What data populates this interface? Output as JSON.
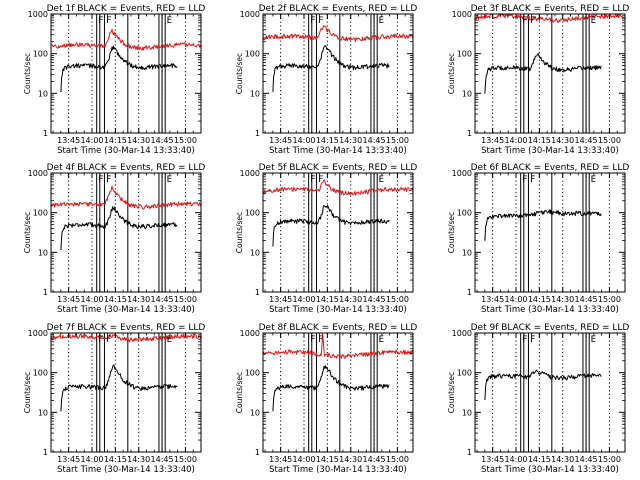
{
  "figure": {
    "background": "#ffffff",
    "axis_color": "#000000",
    "events_color": "#000000",
    "lld_color": "#dd1a1a"
  },
  "chart_data": [
    {
      "type": "line",
      "title": "Det 1f BLACK = Events, RED = LLD",
      "xlabel": "Start Time (30-Mar-14 13:33:40)",
      "ylabel": "Counts/sec",
      "x_ticklabels": [
        "13:45",
        "14:00",
        "14:15",
        "14:30",
        "14:45",
        "15:00"
      ],
      "y_ticklabels": [
        "1",
        "10",
        "100",
        "1000"
      ],
      "xlim": [
        "13:33:40",
        "15:10"
      ],
      "ylim": [
        1,
        1000
      ],
      "yscale": "log",
      "dotted_vlines": [
        "13:45",
        "14:00",
        "14:15",
        "14:30",
        "14:45",
        "15:00"
      ],
      "solid_vlines": [
        "14:03",
        "14:05",
        "14:08",
        "14:23",
        "14:43",
        "14:45",
        "14:47"
      ],
      "markers": [
        {
          "text": "F",
          "time": "14:03"
        },
        {
          "text": "F",
          "time": "14:08"
        },
        {
          "text": "E",
          "time": "14:47"
        }
      ],
      "series": [
        {
          "name": "Events",
          "color": "#000000",
          "start": "13:40",
          "end": "14:55",
          "base": 45,
          "peak": 150,
          "peak_time": "14:14",
          "peak_width": 2,
          "spike": null
        },
        {
          "name": "LLD",
          "color": "#dd1a1a",
          "start": "13:33:40",
          "end": "15:10",
          "base": 150,
          "peak": 380,
          "peak_time": "14:13",
          "peak_width": 2,
          "spike": null
        }
      ]
    },
    {
      "type": "line",
      "title": "Det 2f BLACK = Events, RED = LLD",
      "xlabel": "Start Time (30-Mar-14 13:33:40)",
      "ylabel": "Counts/sec",
      "x_ticklabels": [
        "13:45",
        "14:00",
        "14:15",
        "14:30",
        "14:45",
        "15:00"
      ],
      "y_ticklabels": [
        "1",
        "10",
        "100",
        "1000"
      ],
      "xlim": [
        "13:33:40",
        "15:10"
      ],
      "ylim": [
        1,
        1000
      ],
      "yscale": "log",
      "dotted_vlines": [
        "13:45",
        "14:00",
        "14:15",
        "14:30",
        "14:45",
        "15:00"
      ],
      "solid_vlines": [
        "14:03",
        "14:05",
        "14:08",
        "14:23",
        "14:43",
        "14:45",
        "14:47"
      ],
      "markers": [
        {
          "text": "F",
          "time": "14:03"
        },
        {
          "text": "F",
          "time": "14:08"
        },
        {
          "text": "E",
          "time": "14:47"
        }
      ],
      "series": [
        {
          "name": "Events",
          "color": "#000000",
          "start": "13:40",
          "end": "14:55",
          "base": 45,
          "peak": 160,
          "peak_time": "14:14",
          "peak_width": 2,
          "spike": null
        },
        {
          "name": "LLD",
          "color": "#dd1a1a",
          "start": "13:33:40",
          "end": "15:10",
          "base": 250,
          "peak": 500,
          "peak_time": "14:13",
          "peak_width": 2,
          "spike": null
        }
      ]
    },
    {
      "type": "line",
      "title": "Det 3f BLACK = Events, RED = LLD",
      "xlabel": "Start Time (30-Mar-14 13:33:40)",
      "ylabel": "Counts/sec",
      "x_ticklabels": [
        "13:45",
        "14:00",
        "14:15",
        "14:30",
        "14:45",
        "15:00"
      ],
      "y_ticklabels": [
        "1",
        "10",
        "100",
        "1000"
      ],
      "xlim": [
        "13:33:40",
        "15:10"
      ],
      "ylim": [
        1,
        1000
      ],
      "yscale": "log",
      "dotted_vlines": [
        "13:45",
        "14:00",
        "14:15",
        "14:30",
        "14:45",
        "15:00"
      ],
      "solid_vlines": [
        "14:03",
        "14:05",
        "14:08",
        "14:23",
        "14:43",
        "14:45",
        "14:47"
      ],
      "markers": [
        {
          "text": "F",
          "time": "14:03"
        },
        {
          "text": "F",
          "time": "14:08"
        },
        {
          "text": "E",
          "time": "14:47"
        }
      ],
      "series": [
        {
          "name": "Events",
          "color": "#000000",
          "start": "13:40",
          "end": "14:55",
          "base": 40,
          "peak": 100,
          "peak_time": "14:14",
          "peak_width": 2,
          "spike": null
        },
        {
          "name": "LLD",
          "color": "#dd1a1a",
          "start": "13:33:40",
          "end": "15:10",
          "base": 800,
          "peak": 800,
          "peak_time": "14:13",
          "peak_width": 2,
          "spike": null
        }
      ]
    },
    {
      "type": "line",
      "title": "Det 4f BLACK = Events, RED = LLD",
      "xlabel": "Start Time (30-Mar-14 13:33:40)",
      "ylabel": "Counts/sec",
      "x_ticklabels": [
        "13:45",
        "14:00",
        "14:15",
        "14:30",
        "14:45",
        "15:00"
      ],
      "y_ticklabels": [
        "1",
        "10",
        "100",
        "1000"
      ],
      "xlim": [
        "13:33:40",
        "15:10"
      ],
      "ylim": [
        1,
        1000
      ],
      "yscale": "log",
      "dotted_vlines": [
        "13:45",
        "14:00",
        "14:15",
        "14:30",
        "14:45",
        "15:00"
      ],
      "solid_vlines": [
        "14:03",
        "14:05",
        "14:08",
        "14:23",
        "14:43",
        "14:45",
        "14:47"
      ],
      "markers": [
        {
          "text": "F",
          "time": "14:03"
        },
        {
          "text": "F",
          "time": "14:08"
        },
        {
          "text": "E",
          "time": "14:47"
        }
      ],
      "series": [
        {
          "name": "Events",
          "color": "#000000",
          "start": "13:40",
          "end": "14:55",
          "base": 45,
          "peak": 140,
          "peak_time": "14:14",
          "peak_width": 2,
          "spike": null
        },
        {
          "name": "LLD",
          "color": "#dd1a1a",
          "start": "13:33:40",
          "end": "15:10",
          "base": 150,
          "peak": 420,
          "peak_time": "14:13",
          "peak_width": 2,
          "spike": null
        }
      ]
    },
    {
      "type": "line",
      "title": "Det 5f BLACK = Events, RED = LLD",
      "xlabel": "Start Time (30-Mar-14 13:33:40)",
      "ylabel": "Counts/sec",
      "x_ticklabels": [
        "13:45",
        "14:00",
        "14:15",
        "14:30",
        "14:45",
        "15:00"
      ],
      "y_ticklabels": [
        "1",
        "10",
        "100",
        "1000"
      ],
      "xlim": [
        "13:33:40",
        "15:10"
      ],
      "ylim": [
        1,
        1000
      ],
      "yscale": "log",
      "dotted_vlines": [
        "13:45",
        "14:00",
        "14:15",
        "14:30",
        "14:45",
        "15:00"
      ],
      "solid_vlines": [
        "14:03",
        "14:05",
        "14:08",
        "14:23",
        "14:43",
        "14:45",
        "14:47"
      ],
      "markers": [
        {
          "text": "F",
          "time": "14:03"
        },
        {
          "text": "F",
          "time": "14:08"
        },
        {
          "text": "E",
          "time": "14:47"
        }
      ],
      "series": [
        {
          "name": "Events",
          "color": "#000000",
          "start": "13:40",
          "end": "14:55",
          "base": 55,
          "peak": 160,
          "peak_time": "14:14",
          "peak_width": 2,
          "spike": null
        },
        {
          "name": "LLD",
          "color": "#dd1a1a",
          "start": "13:33:40",
          "end": "15:10",
          "base": 350,
          "peak": 650,
          "peak_time": "14:13",
          "peak_width": 1.5,
          "spike": null
        }
      ]
    },
    {
      "type": "line",
      "title": "Det 6f BLACK = Events, RED = LLD",
      "xlabel": "Start Time (30-Mar-14 13:33:40)",
      "ylabel": "Counts/sec",
      "x_ticklabels": [
        "13:45",
        "14:00",
        "14:15",
        "14:30",
        "14:45",
        "15:00"
      ],
      "y_ticklabels": [
        "1",
        "10",
        "100",
        "1000"
      ],
      "xlim": [
        "13:33:40",
        "15:10"
      ],
      "ylim": [
        1,
        1000
      ],
      "yscale": "log",
      "dotted_vlines": [
        "13:45",
        "14:00",
        "14:15",
        "14:30",
        "14:45",
        "15:00"
      ],
      "solid_vlines": [
        "14:03",
        "14:05",
        "14:08",
        "14:23",
        "14:43",
        "14:45",
        "14:47"
      ],
      "markers": [
        {
          "text": "F",
          "time": "14:03"
        },
        {
          "text": "F",
          "time": "14:08"
        },
        {
          "text": "E",
          "time": "14:47"
        }
      ],
      "series": [
        {
          "name": "Events",
          "color": "#000000",
          "start": "13:40",
          "end": "14:55",
          "base": 75,
          "peak": 115,
          "peak_time": "14:22",
          "peak_width": 9,
          "spike": null
        }
      ]
    },
    {
      "type": "line",
      "title": "Det 7f BLACK = Events, RED = LLD",
      "xlabel": "Start Time (30-Mar-14 13:33:40)",
      "ylabel": "Counts/sec",
      "x_ticklabels": [
        "13:45",
        "14:00",
        "14:15",
        "14:30",
        "14:45",
        "15:00"
      ],
      "y_ticklabels": [
        "1",
        "10",
        "100",
        "1000"
      ],
      "xlim": [
        "13:33:40",
        "15:10"
      ],
      "ylim": [
        1,
        1000
      ],
      "yscale": "log",
      "dotted_vlines": [
        "13:45",
        "14:00",
        "14:15",
        "14:30",
        "14:45",
        "15:00"
      ],
      "solid_vlines": [
        "14:03",
        "14:05",
        "14:08",
        "14:23",
        "14:43",
        "14:45",
        "14:47"
      ],
      "markers": [
        {
          "text": "F",
          "time": "14:03"
        },
        {
          "text": "F",
          "time": "14:08"
        },
        {
          "text": "E",
          "time": "14:47"
        }
      ],
      "series": [
        {
          "name": "Events",
          "color": "#000000",
          "start": "13:40",
          "end": "14:55",
          "base": 40,
          "peak": 150,
          "peak_time": "14:14",
          "peak_width": 2,
          "spike": null
        },
        {
          "name": "LLD",
          "color": "#dd1a1a",
          "start": "13:33:40",
          "end": "15:10",
          "base": 750,
          "peak": 900,
          "peak_time": "14:13",
          "peak_width": 2,
          "spike": null
        }
      ]
    },
    {
      "type": "line",
      "title": "Det 8f BLACK = Events, RED = LLD",
      "xlabel": "Start Time (30-Mar-14 13:33:40)",
      "ylabel": "Counts/sec",
      "x_ticklabels": [
        "13:45",
        "14:00",
        "14:15",
        "14:30",
        "14:45",
        "15:00"
      ],
      "y_ticklabels": [
        "1",
        "10",
        "100",
        "1000"
      ],
      "xlim": [
        "13:33:40",
        "15:10"
      ],
      "ylim": [
        1,
        1000
      ],
      "yscale": "log",
      "dotted_vlines": [
        "13:45",
        "14:00",
        "14:15",
        "14:30",
        "14:45",
        "15:00"
      ],
      "solid_vlines": [
        "14:03",
        "14:05",
        "14:08",
        "14:23",
        "14:43",
        "14:45",
        "14:47"
      ],
      "markers": [
        {
          "text": "F",
          "time": "14:03"
        },
        {
          "text": "F",
          "time": "14:08"
        },
        {
          "text": "E",
          "time": "14:47"
        }
      ],
      "series": [
        {
          "name": "Events",
          "color": "#000000",
          "start": "13:40",
          "end": "14:55",
          "base": 40,
          "peak": 150,
          "peak_time": "14:14",
          "peak_width": 2,
          "spike": null
        },
        {
          "name": "LLD",
          "color": "#dd1a1a",
          "start": "13:33:40",
          "end": "15:10",
          "base": 300,
          "peak": 300,
          "peak_time": "14:13",
          "peak_width": 2,
          "spike": {
            "time": "14:12",
            "value": 900
          }
        }
      ]
    },
    {
      "type": "line",
      "title": "Det 9f BLACK = Events, RED = LLD",
      "xlabel": "Start Time (30-Mar-14 13:33:40)",
      "ylabel": "Counts/sec",
      "x_ticklabels": [
        "13:45",
        "14:00",
        "14:15",
        "14:30",
        "14:45",
        "15:00"
      ],
      "y_ticklabels": [
        "1",
        "10",
        "100",
        "1000"
      ],
      "xlim": [
        "13:33:40",
        "15:10"
      ],
      "ylim": [
        1,
        1000
      ],
      "yscale": "log",
      "dotted_vlines": [
        "13:45",
        "14:00",
        "14:15",
        "14:30",
        "14:45",
        "15:00"
      ],
      "solid_vlines": [
        "14:03",
        "14:05",
        "14:08",
        "14:23",
        "14:43",
        "14:45",
        "14:47"
      ],
      "markers": [
        {
          "text": "F",
          "time": "14:03"
        },
        {
          "text": "F",
          "time": "14:08"
        },
        {
          "text": "E",
          "time": "14:47"
        }
      ],
      "series": [
        {
          "name": "Events",
          "color": "#000000",
          "start": "13:40",
          "end": "14:55",
          "base": 75,
          "peak": 115,
          "peak_time": "14:14",
          "peak_width": 3,
          "spike": null
        }
      ]
    }
  ]
}
